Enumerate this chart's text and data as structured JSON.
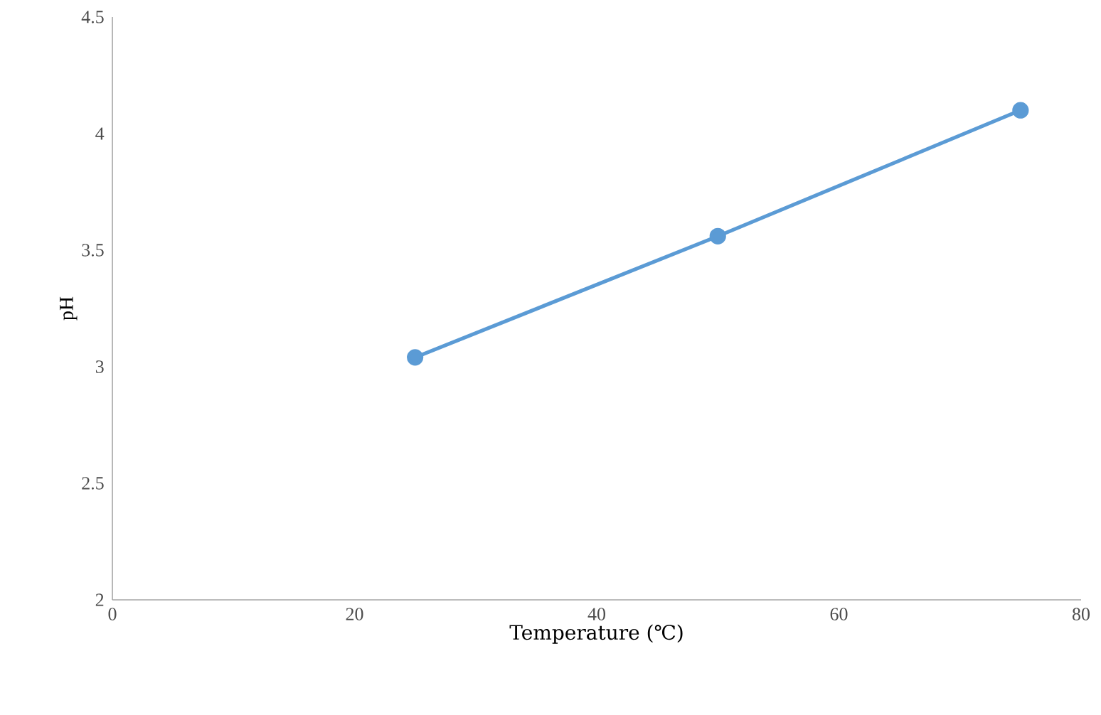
{
  "chart_data": {
    "type": "line",
    "xlabel": "Temperature (℃)",
    "ylabel": "pH",
    "x": [
      25,
      50,
      75
    ],
    "series": [
      {
        "color": "#5b9bd5",
        "values": [
          3.04,
          3.56,
          4.1
        ]
      }
    ],
    "xlim": [
      0,
      80
    ],
    "ylim": [
      2,
      4.5
    ],
    "xticks": [
      0,
      20,
      40,
      60,
      80
    ],
    "yticks": [
      2,
      2.5,
      3,
      3.5,
      4,
      4.5
    ],
    "marker": "circle",
    "line_style": "solid"
  }
}
